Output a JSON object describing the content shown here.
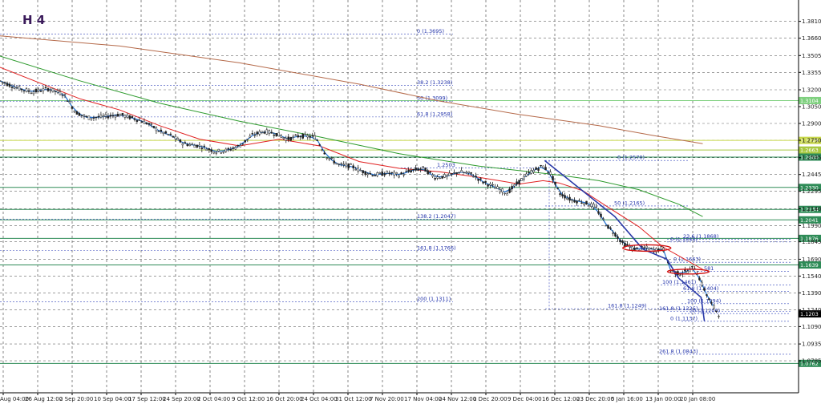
{
  "chart_data": {
    "type": "candlestick",
    "title": "H 4",
    "ylim": [
      1.05,
      1.4
    ],
    "y_ticks": [
      1.381,
      1.366,
      1.3505,
      1.3355,
      1.32,
      1.305,
      1.29,
      1.275,
      1.2595,
      1.2445,
      1.2295,
      1.214,
      1.199,
      1.1845,
      1.169,
      1.154,
      1.139,
      1.124,
      1.109,
      1.0935,
      1.0785
    ],
    "x_tick_labels": [
      "Aug 04:00",
      "26 Aug 12:00",
      "2 Sep 20:00",
      "10 Sep 04:00",
      "17 Sep 12:00",
      "24 Sep 20:00",
      "2 Oct 04:00",
      "9 Oct 12:00",
      "16 Oct 20:00",
      "24 Oct 04:00",
      "31 Oct 12:00",
      "7 Nov 20:00",
      "17 Nov 04:00",
      "24 Nov 12:00",
      "1 Dec 20:00",
      "9 Dec 04:00",
      "16 Dec 12:00",
      "23 Dec 20:00",
      "5 Jan 16:00",
      "13 Jan 00:00",
      "20 Jan 08:00"
    ],
    "current_price": "1.1203",
    "horizontal_levels": [
      {
        "price": 1.3104,
        "label": "1.3104",
        "color": "#7fd07f"
      },
      {
        "price": 1.2749,
        "label": "1.2749",
        "color": "#c8d84a"
      },
      {
        "price": 1.2663,
        "label": "1.2663",
        "color": "#a8c840"
      },
      {
        "price": 1.26,
        "label": "1.2600",
        "color": "#2e8b57"
      },
      {
        "price": 1.233,
        "label": "1.2330",
        "color": "#2e8b57"
      },
      {
        "price": 1.2134,
        "label": "1.2134",
        "color": "#2e8b57"
      },
      {
        "price": 1.2041,
        "label": "1.2041",
        "color": "#2e8b57"
      },
      {
        "price": 1.1876,
        "label": "1.1876",
        "color": "#2e8b57"
      },
      {
        "price": 1.1639,
        "label": "1.1639",
        "color": "#2e8b57"
      },
      {
        "price": 1.0762,
        "label": "1.0762",
        "color": "#2e8b57"
      }
    ],
    "fib_levels": [
      {
        "price": 1.3695,
        "label": "0 (1.3695)"
      },
      {
        "price": 1.3238,
        "label": "38.2 (1.3238)"
      },
      {
        "price": 1.3099,
        "label": "50 (1.3099)"
      },
      {
        "price": 1.2958,
        "label": "61.8 (1.2958)"
      },
      {
        "price": 1.2047,
        "label": "138.2 (1.2047)"
      },
      {
        "price": 1.1766,
        "label": "161.8 (1.1766)"
      },
      {
        "price": 1.1311,
        "label": "200 (1.1311)"
      }
    ],
    "fib_levels_2": [
      {
        "price": 1.257,
        "label": "0 (1.2570)"
      },
      {
        "price": 1.2165,
        "label": "50 (1.2165)"
      },
      {
        "price": 1.1844,
        "label": "0 (1.1844)"
      },
      {
        "price": 1.1868,
        "label": "23.6 (1.1868)"
      },
      {
        "price": 1.1663,
        "label": "0 (1.1663)"
      },
      {
        "price": 1.1461,
        "label": "100 (1.1461)"
      },
      {
        "price": 1.1404,
        "label": "61.8 (1.1404)"
      },
      {
        "price": 1.1294,
        "label": "100 (1.1294)"
      },
      {
        "price": 1.1249,
        "label": "161.8 (1.1249)"
      },
      {
        "price": 1.1225,
        "label": "161.8 (1.1225)"
      },
      {
        "price": 1.1206,
        "label": "50 (1.1206)"
      },
      {
        "price": 1.1137,
        "label": "0 (1.1137)"
      },
      {
        "price": 1.0843,
        "label": "261.8 (1.0843)"
      },
      {
        "price": 1.2503,
        "label": "1.2503"
      },
      {
        "price": 1.1581,
        "label": "581"
      }
    ],
    "price_path": [
      [
        0.0,
        1.328
      ],
      [
        0.02,
        1.322
      ],
      [
        0.04,
        1.318
      ],
      [
        0.06,
        1.321
      ],
      [
        0.08,
        1.316
      ],
      [
        0.095,
        1.3
      ],
      [
        0.11,
        1.295
      ],
      [
        0.13,
        1.296
      ],
      [
        0.15,
        1.298
      ],
      [
        0.17,
        1.294
      ],
      [
        0.185,
        1.29
      ],
      [
        0.2,
        1.283
      ],
      [
        0.215,
        1.279
      ],
      [
        0.23,
        1.272
      ],
      [
        0.25,
        1.27
      ],
      [
        0.27,
        1.265
      ],
      [
        0.285,
        1.266
      ],
      [
        0.3,
        1.27
      ],
      [
        0.315,
        1.279
      ],
      [
        0.33,
        1.283
      ],
      [
        0.345,
        1.281
      ],
      [
        0.36,
        1.276
      ],
      [
        0.375,
        1.279
      ],
      [
        0.395,
        1.278
      ],
      [
        0.41,
        1.26
      ],
      [
        0.425,
        1.253
      ],
      [
        0.44,
        1.252
      ],
      [
        0.455,
        1.247
      ],
      [
        0.47,
        1.244
      ],
      [
        0.485,
        1.246
      ],
      [
        0.5,
        1.244
      ],
      [
        0.515,
        1.248
      ],
      [
        0.53,
        1.25
      ],
      [
        0.545,
        1.242
      ],
      [
        0.56,
        1.243
      ],
      [
        0.575,
        1.247
      ],
      [
        0.59,
        1.245
      ],
      [
        0.605,
        1.238
      ],
      [
        0.62,
        1.233
      ],
      [
        0.635,
        1.228
      ],
      [
        0.65,
        1.238
      ],
      [
        0.665,
        1.247
      ],
      [
        0.68,
        1.252
      ],
      [
        0.69,
        1.245
      ],
      [
        0.7,
        1.228
      ],
      [
        0.715,
        1.222
      ],
      [
        0.73,
        1.22
      ],
      [
        0.745,
        1.216
      ],
      [
        0.76,
        1.199
      ],
      [
        0.77,
        1.192
      ],
      [
        0.78,
        1.183
      ],
      [
        0.795,
        1.178
      ],
      [
        0.81,
        1.179
      ],
      [
        0.82,
        1.177
      ],
      [
        0.83,
        1.179
      ],
      [
        0.84,
        1.159
      ],
      [
        0.85,
        1.156
      ],
      [
        0.86,
        1.158
      ],
      [
        0.87,
        1.162
      ],
      [
        0.88,
        1.145
      ],
      [
        0.89,
        1.13
      ],
      [
        0.9,
        1.1203
      ]
    ],
    "series": [
      {
        "name": "",
        "color": "#1f77d0",
        "offset": 0.0
      },
      {
        "name": "",
        "color": "#e02020",
        "offset": 0.0
      },
      {
        "name": "",
        "color": "#22a022",
        "offset": 0.0
      },
      {
        "name": "",
        "color": "#b05a40",
        "offset": 0.0
      }
    ],
    "ma_red": [
      [
        0.0,
        1.34
      ],
      [
        0.1,
        1.312
      ],
      [
        0.15,
        1.302
      ],
      [
        0.2,
        1.288
      ],
      [
        0.25,
        1.276
      ],
      [
        0.3,
        1.27
      ],
      [
        0.35,
        1.276
      ],
      [
        0.4,
        1.27
      ],
      [
        0.45,
        1.256
      ],
      [
        0.5,
        1.25
      ],
      [
        0.55,
        1.247
      ],
      [
        0.6,
        1.242
      ],
      [
        0.65,
        1.236
      ],
      [
        0.68,
        1.239
      ],
      [
        0.7,
        1.237
      ],
      [
        0.73,
        1.23
      ],
      [
        0.76,
        1.216
      ],
      [
        0.8,
        1.198
      ],
      [
        0.83,
        1.18
      ],
      [
        0.86,
        1.168
      ],
      [
        0.88,
        1.16
      ]
    ],
    "ma_green": [
      [
        0.0,
        1.35
      ],
      [
        0.1,
        1.328
      ],
      [
        0.2,
        1.308
      ],
      [
        0.3,
        1.292
      ],
      [
        0.4,
        1.278
      ],
      [
        0.5,
        1.263
      ],
      [
        0.6,
        1.252
      ],
      [
        0.7,
        1.244
      ],
      [
        0.75,
        1.239
      ],
      [
        0.8,
        1.231
      ],
      [
        0.85,
        1.218
      ],
      [
        0.88,
        1.207
      ]
    ],
    "ma_brown": [
      [
        0.0,
        1.368
      ],
      [
        0.15,
        1.359
      ],
      [
        0.3,
        1.344
      ],
      [
        0.45,
        1.325
      ],
      [
        0.55,
        1.31
      ],
      [
        0.65,
        1.298
      ],
      [
        0.75,
        1.288
      ],
      [
        0.82,
        1.279
      ],
      [
        0.88,
        1.272
      ]
    ],
    "trend_lines": [
      {
        "points": [
          [
            0.682,
            1.257
          ],
          [
            0.77,
            1.207
          ],
          [
            0.805,
            1.178
          ]
        ],
        "color": "#2a3aa8"
      },
      {
        "points": [
          [
            0.805,
            1.178
          ],
          [
            0.835,
            1.169
          ],
          [
            0.85,
            1.152
          ]
        ],
        "color": "#2a3aa8"
      },
      {
        "points": [
          [
            0.85,
            1.152
          ],
          [
            0.878,
            1.135
          ],
          [
            0.882,
            1.114
          ]
        ],
        "color": "#2a3aa8"
      }
    ]
  }
}
